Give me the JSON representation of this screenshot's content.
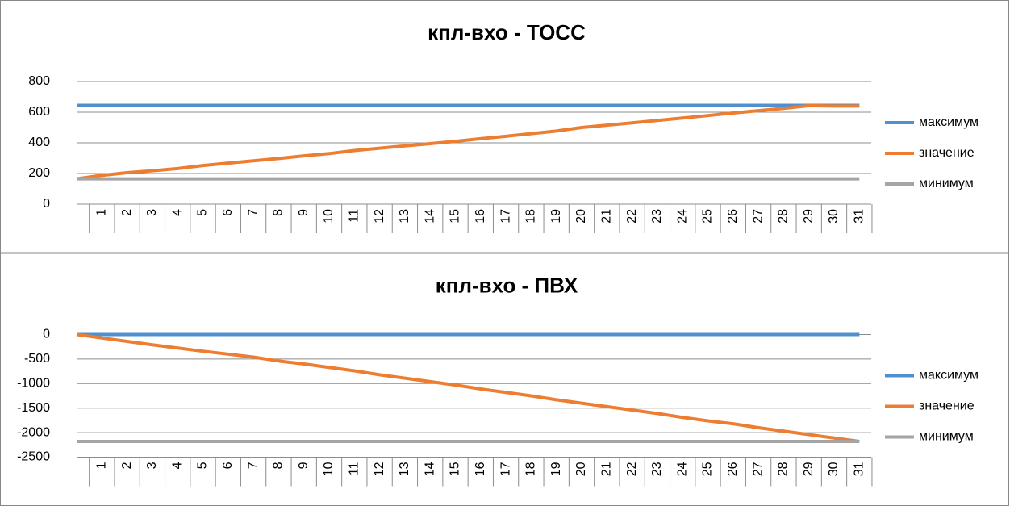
{
  "chart_data": [
    {
      "type": "line",
      "title": "кпл-вхо - ТОСС",
      "categories": [
        null,
        "1",
        "2",
        "3",
        "4",
        "5",
        "6",
        "7",
        "8",
        "9",
        "10",
        "11",
        "12",
        "13",
        "14",
        "15",
        "16",
        "17",
        "18",
        "19",
        "20",
        "21",
        "22",
        "23",
        "24",
        "25",
        "26",
        "27",
        "28",
        "29",
        "30",
        "31"
      ],
      "series": [
        {
          "name": "максимум",
          "color": "#4f91cf",
          "values": [
            645,
            645,
            645,
            645,
            645,
            645,
            645,
            645,
            645,
            645,
            645,
            645,
            645,
            645,
            645,
            645,
            645,
            645,
            645,
            645,
            645,
            645,
            645,
            645,
            645,
            645,
            645,
            645,
            645,
            645,
            645,
            645
          ]
        },
        {
          "name": "значение",
          "color": "#ed7d31",
          "values": [
            165,
            188,
            205,
            218,
            232,
            252,
            268,
            283,
            298,
            315,
            330,
            350,
            365,
            380,
            395,
            410,
            427,
            443,
            460,
            477,
            500,
            515,
            530,
            546,
            562,
            578,
            595,
            610,
            625,
            643,
            640,
            640
          ]
        },
        {
          "name": "минимум",
          "color": "#a5a5a5",
          "values": [
            165,
            165,
            165,
            165,
            165,
            165,
            165,
            165,
            165,
            165,
            165,
            165,
            165,
            165,
            165,
            165,
            165,
            165,
            165,
            165,
            165,
            165,
            165,
            165,
            165,
            165,
            165,
            165,
            165,
            165,
            165,
            165
          ]
        }
      ],
      "ylim": [
        0,
        800
      ],
      "yticks": [
        0,
        200,
        400,
        600,
        800
      ],
      "grid": true,
      "legend": "right"
    },
    {
      "type": "line",
      "title": "кпл-вхо - ПВХ",
      "categories": [
        null,
        "1",
        "2",
        "3",
        "4",
        "5",
        "6",
        "7",
        "8",
        "9",
        "10",
        "11",
        "12",
        "13",
        "14",
        "15",
        "16",
        "17",
        "18",
        "19",
        "20",
        "21",
        "22",
        "23",
        "24",
        "25",
        "26",
        "27",
        "28",
        "29",
        "30",
        "31"
      ],
      "series": [
        {
          "name": "максимум",
          "color": "#4f91cf",
          "values": [
            0,
            0,
            0,
            0,
            0,
            0,
            0,
            0,
            0,
            0,
            0,
            0,
            0,
            0,
            0,
            0,
            0,
            0,
            0,
            0,
            0,
            0,
            0,
            0,
            0,
            0,
            0,
            0,
            0,
            0,
            0,
            0
          ]
        },
        {
          "name": "значение",
          "color": "#ed7d31",
          "values": [
            0,
            -70,
            -140,
            -210,
            -275,
            -340,
            -400,
            -460,
            -540,
            -600,
            -670,
            -740,
            -820,
            -890,
            -960,
            -1030,
            -1110,
            -1180,
            -1250,
            -1330,
            -1400,
            -1470,
            -1540,
            -1610,
            -1690,
            -1760,
            -1820,
            -1900,
            -1970,
            -2040,
            -2110,
            -2180
          ]
        },
        {
          "name": "минимум",
          "color": "#a5a5a5",
          "values": [
            -2180,
            -2180,
            -2180,
            -2180,
            -2180,
            -2180,
            -2180,
            -2180,
            -2180,
            -2180,
            -2180,
            -2180,
            -2180,
            -2180,
            -2180,
            -2180,
            -2180,
            -2180,
            -2180,
            -2180,
            -2180,
            -2180,
            -2180,
            -2180,
            -2180,
            -2180,
            -2180,
            -2180,
            -2180,
            -2180,
            -2180,
            -2180
          ]
        }
      ],
      "ylim": [
        -2500,
        0
      ],
      "yticks": [
        -2500,
        -2000,
        -1500,
        -1000,
        -500,
        0
      ],
      "grid": true,
      "legend": "right"
    }
  ]
}
